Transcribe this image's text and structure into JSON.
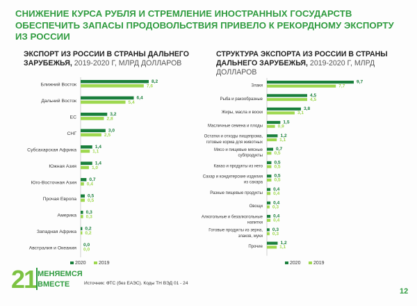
{
  "headline": "Снижение курса рубля и стремление иностранных государств обеспечить запасы продовольствия привело к рекордному экспорту из России",
  "colors": {
    "c2020": "#1a7f3c",
    "c2019": "#9ed84f",
    "accent": "#2f9b3f"
  },
  "left_title": {
    "main_1": "Экспорт из России в страны дальнего",
    "main_2": "зарубежья,",
    "years": "2019-2020 г, млрд долларов"
  },
  "right_title": {
    "main_1": "Структура экспорта из России в страны",
    "main_2": "дальнего зарубежья,",
    "years": "2019-2020 г, млрд долларов"
  },
  "chart_data": [
    {
      "type": "bar",
      "orientation": "horizontal",
      "categories": [
        "Ближний Восток",
        "Дальний Восток",
        "ЕС",
        "СНГ",
        "Субсахарская Африка",
        "Южная Азия",
        "Юго-Восточная Азия",
        "Прочая Европа",
        "Америка",
        "Западная Африка",
        "Австралия и Океания"
      ],
      "series": [
        {
          "name": "2020",
          "values": [
            8.2,
            6.4,
            3.2,
            3.0,
            1.4,
            1.4,
            0.7,
            0.5,
            0.3,
            0.2,
            0.0
          ]
        },
        {
          "name": "2019",
          "values": [
            7.6,
            5.4,
            2.8,
            2.5,
            1.1,
            1.0,
            0.4,
            0.5,
            0.3,
            0.2,
            0.0
          ]
        }
      ],
      "value_labels": {
        "2020": [
          "8,2",
          "6,4",
          "3,2",
          "3,0",
          "1,4",
          "1,4",
          "0,7",
          "0,5",
          "0,3",
          "0,2",
          "0,0"
        ],
        "2019": [
          "7,6",
          "5,4",
          "2,8",
          "2,5",
          "1,1",
          "1,0",
          "0,4",
          "0,5",
          "0,3",
          "0,2",
          "0,0"
        ]
      },
      "legend": [
        "2020",
        "2019"
      ],
      "legend_position": "bottom-left",
      "xlim": [
        0,
        8.2
      ]
    },
    {
      "type": "bar",
      "orientation": "horizontal",
      "categories": [
        "Злаки",
        "Рыба и ракообразные",
        "Жиры, масла и воски",
        "Масличные семена и плоды",
        "Остатки и отходы пищепрома, готовые корма для животных",
        "Мясо и пищевые мясные субпродукты",
        "Какао и продукты из него",
        "Сахар и кондитерские изделия из сахара",
        "Разные пищевые продукты",
        "Овощи",
        "Алкогольные и безалкогольные напитки",
        "Готовые продукты из зерна, злаков, муки",
        "Прочие"
      ],
      "series": [
        {
          "name": "2020",
          "values": [
            9.7,
            4.5,
            3.8,
            1.5,
            1.2,
            0.7,
            0.5,
            0.5,
            0.4,
            0.4,
            0.4,
            0.3,
            1.2
          ]
        },
        {
          "name": "2019",
          "values": [
            7.7,
            4.5,
            3.1,
            0.9,
            1.1,
            0.5,
            0.5,
            0.5,
            0.4,
            0.3,
            0.4,
            0.3,
            1.1
          ]
        }
      ],
      "value_labels": {
        "2020": [
          "9,7",
          "4,5",
          "3,8",
          "1,5",
          "1,2",
          "0,7",
          "0,5",
          "0,5",
          "0,4",
          "0,4",
          "0,4",
          "0,3",
          "1,2"
        ],
        "2019": [
          "7,7",
          "4,5",
          "3,1",
          "0,9",
          "1,1",
          "0,5",
          "0,5",
          "0,5",
          "0,4",
          "0,3",
          "0,4",
          "0,3",
          "1,1"
        ]
      },
      "legend": [
        "2020",
        "2019"
      ],
      "legend_position": "bottom-left",
      "xlim": [
        0,
        9.7
      ]
    }
  ],
  "footer": {
    "source": "Источник: ФТС (без ЕАЭС). Коды ТН ВЭД 01 - 24",
    "page": "12",
    "logo_number": "21",
    "logo_word1": "МЕНЯЕМСЯ",
    "logo_word2": "ВМЕСТЕ"
  }
}
